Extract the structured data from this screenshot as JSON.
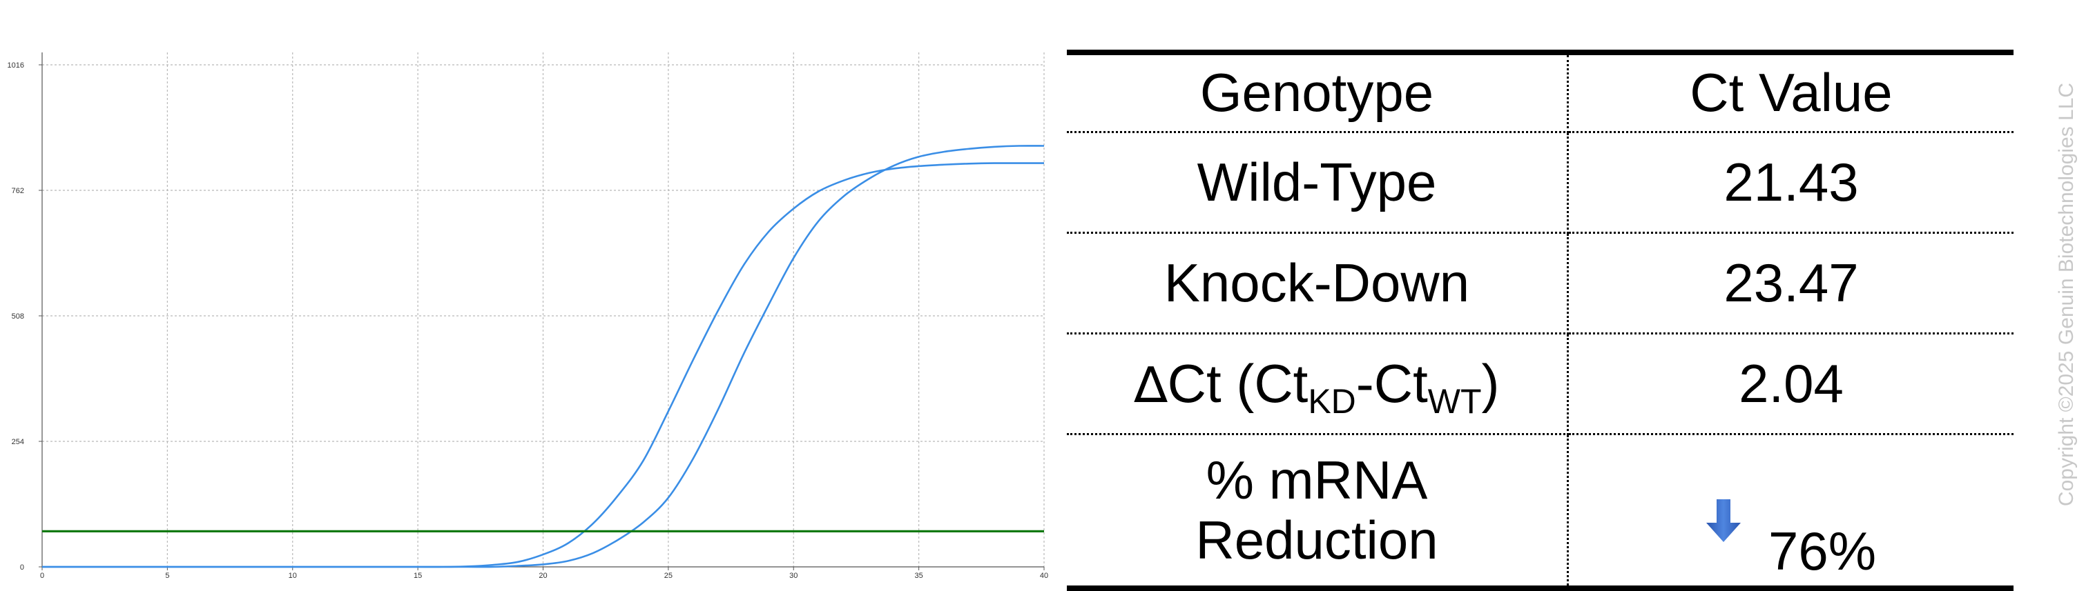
{
  "chart_data": {
    "type": "line",
    "x_ticks": [
      0,
      5,
      10,
      15,
      20,
      25,
      30,
      35,
      40
    ],
    "y_ticks": [
      0,
      254,
      508,
      762,
      1016
    ],
    "xlim": [
      0,
      40
    ],
    "ylim": [
      0,
      1016
    ],
    "grid": true,
    "line_color": "#3a8ee6",
    "threshold_color": "#117a11",
    "threshold": 72,
    "series": [
      {
        "x": [
          0,
          1,
          2,
          3,
          4,
          5,
          6,
          7,
          8,
          9,
          10,
          11,
          12,
          13,
          14,
          15,
          16,
          17,
          18,
          19,
          20,
          21,
          22,
          23,
          24,
          25,
          26,
          27,
          28,
          29,
          30,
          31,
          32,
          33,
          34,
          35,
          36,
          37,
          38,
          39,
          40
        ],
        "values": [
          0,
          0,
          0,
          0,
          0,
          0,
          0,
          0,
          0,
          0,
          0,
          0,
          0,
          0,
          0,
          0,
          0,
          1,
          4,
          10,
          25,
          48,
          88,
          145,
          215,
          315,
          420,
          520,
          610,
          678,
          725,
          760,
          782,
          797,
          806,
          811,
          814,
          816,
          817,
          817,
          817
        ]
      },
      {
        "x": [
          0,
          1,
          2,
          3,
          4,
          5,
          6,
          7,
          8,
          9,
          10,
          11,
          12,
          13,
          14,
          15,
          16,
          17,
          18,
          19,
          20,
          21,
          22,
          23,
          24,
          25,
          26,
          27,
          28,
          29,
          30,
          31,
          32,
          33,
          34,
          35,
          36,
          37,
          38,
          39,
          40
        ],
        "values": [
          0,
          0,
          0,
          0,
          0,
          0,
          0,
          0,
          0,
          0,
          0,
          0,
          0,
          0,
          0,
          0,
          0,
          0,
          0,
          2,
          5,
          12,
          28,
          55,
          90,
          140,
          220,
          320,
          430,
          530,
          625,
          700,
          750,
          785,
          812,
          830,
          840,
          846,
          850,
          852,
          852
        ]
      }
    ]
  },
  "table": {
    "headers": [
      "Genotype",
      "Ct Value"
    ],
    "wild_type": {
      "label": "Wild-Type",
      "value": "21.43"
    },
    "knock_down": {
      "label": "Knock-Down",
      "value": "23.47"
    },
    "delta_ct": {
      "delta_symbol": "∆",
      "prefix": "Ct (Ct",
      "sub_kd": "KD",
      "mid": "-Ct",
      "sub_wt": "WT",
      "suffix": ")",
      "value": "2.04"
    },
    "reduction": {
      "label_line1": "% mRNA",
      "label_line2": "Reduction",
      "value": "76%",
      "icon": "down-arrow-icon",
      "icon_color": "#3b6fd1"
    }
  },
  "copyright": "Copyright ©2025 Genuin Biotechnologies LLC"
}
